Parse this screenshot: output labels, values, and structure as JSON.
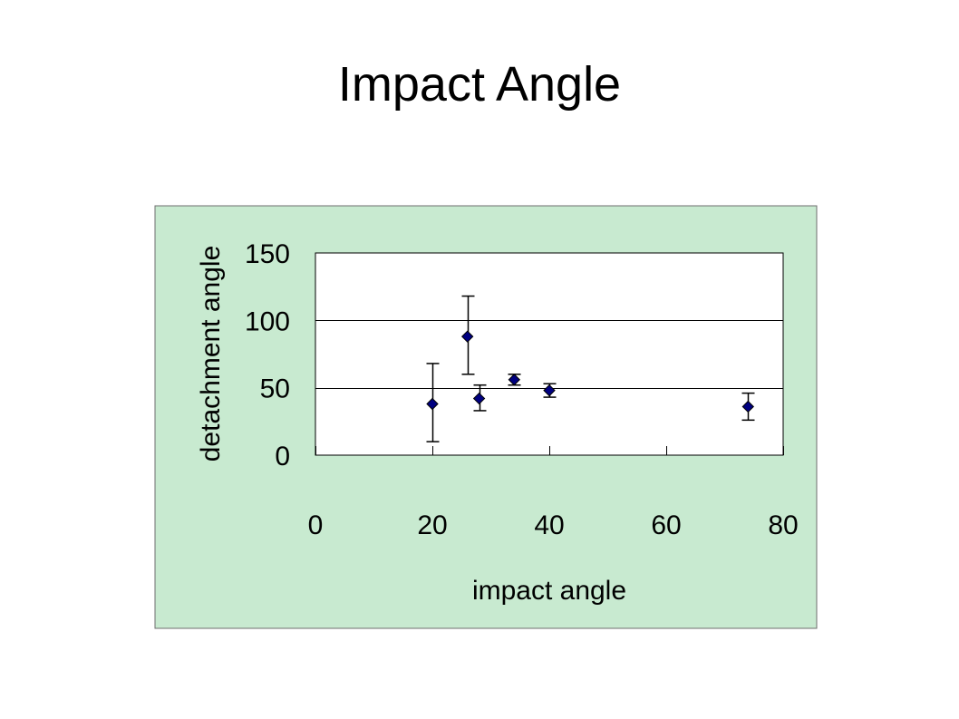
{
  "slide": {
    "title": "Impact Angle"
  },
  "colors": {
    "chart_area_bg": "#c8ead0",
    "chart_area_border": "#6e6e6e",
    "plot_bg": "#ffffff",
    "gridline": "#000000",
    "marker_fill": "#000080",
    "marker_stroke": "#000000",
    "error_bar": "#000000"
  },
  "chart_data": {
    "type": "scatter",
    "title": "",
    "xlabel": "impact angle",
    "ylabel": "detachment angle",
    "xlim": [
      0,
      80
    ],
    "ylim": [
      0,
      150
    ],
    "x_ticks": [
      0,
      20,
      40,
      60,
      80
    ],
    "y_ticks": [
      0,
      50,
      100,
      150
    ],
    "grid": {
      "y_major": true,
      "x_major": false
    },
    "legend": "none",
    "points": [
      {
        "x": 20,
        "y": 38,
        "err_low": 28,
        "err_high": 30
      },
      {
        "x": 26,
        "y": 88,
        "err_low": 28,
        "err_high": 30
      },
      {
        "x": 28,
        "y": 42,
        "err_low": 9,
        "err_high": 10
      },
      {
        "x": 34,
        "y": 56,
        "err_low": 4,
        "err_high": 4
      },
      {
        "x": 40,
        "y": 48,
        "err_low": 5,
        "err_high": 5
      },
      {
        "x": 74,
        "y": 36,
        "err_low": 10,
        "err_high": 10
      }
    ]
  }
}
